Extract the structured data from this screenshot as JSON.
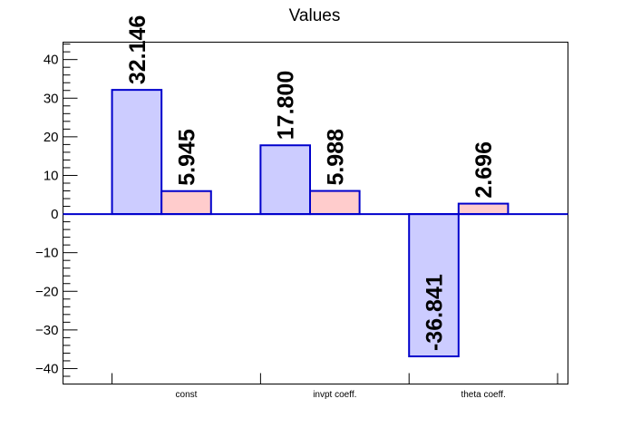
{
  "chart_data": {
    "type": "bar",
    "title": "Values",
    "categories": [
      "const",
      "invpt coeff.",
      "theta coeff."
    ],
    "series": [
      {
        "values": [
          32.146,
          17.8,
          -36.841
        ],
        "labels": [
          "32.146",
          "17.800",
          "-36.841"
        ],
        "fill": "#ccccff",
        "stroke": "#0000cc"
      },
      {
        "values": [
          5.945,
          5.988,
          2.696
        ],
        "labels": [
          "5.945",
          "5.988",
          "2.696"
        ],
        "fill": "#ffcccc",
        "stroke": "#0000cc"
      }
    ],
    "yticks": [
      -40,
      -30,
      -20,
      -10,
      0,
      10,
      20,
      30,
      40
    ],
    "ytick_labels": [
      "−40",
      "−30",
      "−20",
      "−10",
      "0",
      "10",
      "20",
      "30",
      "40"
    ],
    "ylim": [
      -44,
      44.5
    ],
    "xlabel": "",
    "ylabel": "",
    "grid": false,
    "legend": "none",
    "zero_line_color": "#0000cc"
  }
}
